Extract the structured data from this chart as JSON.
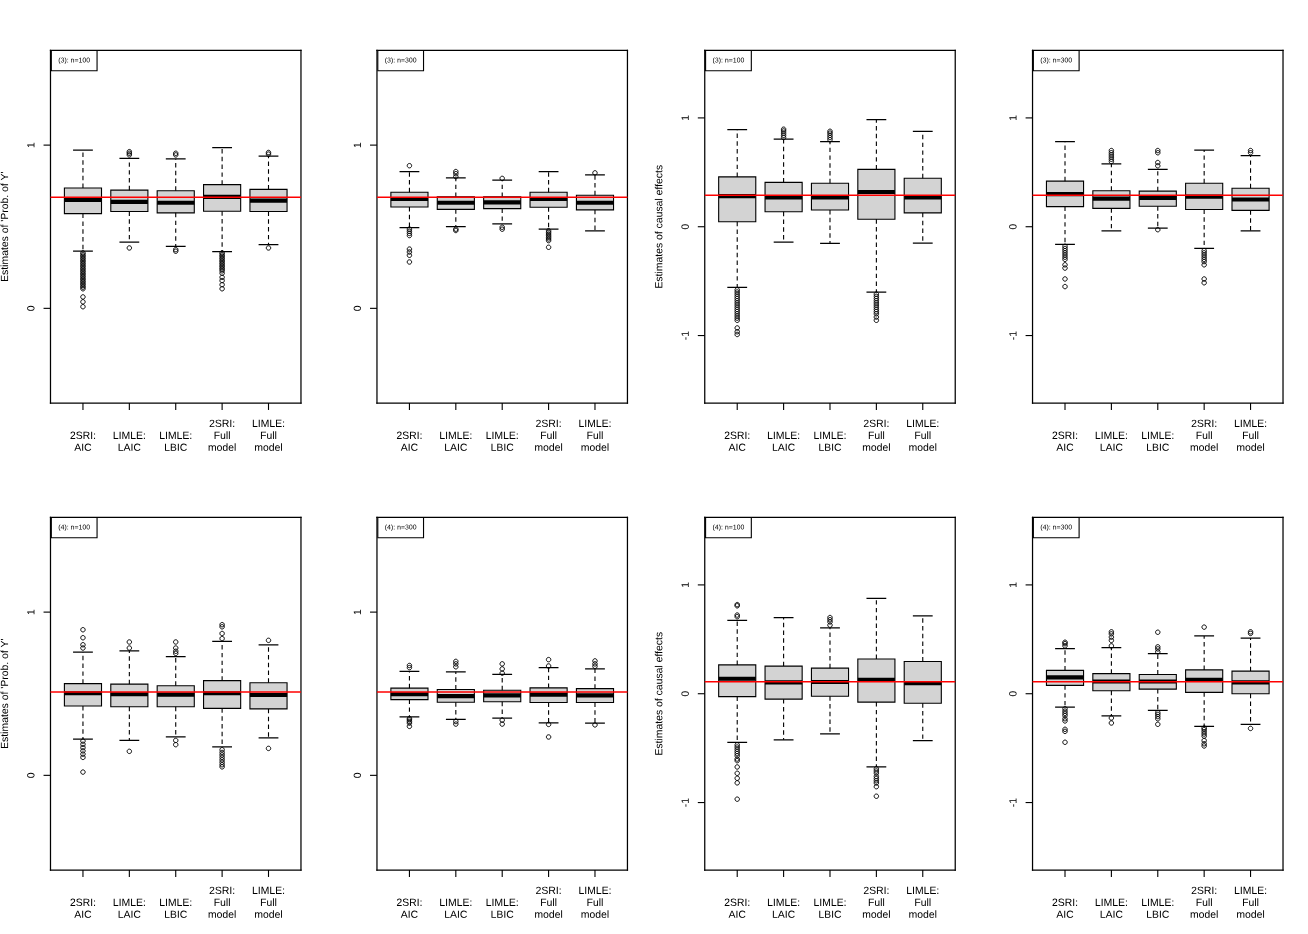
{
  "chart_data": [
    {
      "type": "box",
      "ylabel": "Estimates of 'Prob. of Y'",
      "annotations": [
        "(3): n=100"
      ],
      "categories": [
        "2SRI:\nAIC",
        "LIMLE:\nLAIC",
        "LIMLE:\nLBIC",
        "2SRI:\nFull\nmodel",
        "LIMLE:\nFull\nmodel"
      ],
      "ylim": [
        -0.58,
        1.58
      ],
      "yticks": [
        0,
        1
      ],
      "ref_lines": [
        {
          "axis": "y",
          "value": 0.68,
          "color": "#ff0000"
        }
      ],
      "series": [
        {
          "color": "#d3d3d3",
          "boxes": [
            {
              "low": 0.35,
              "q1": 0.58,
              "median": 0.665,
              "q3": 0.737,
              "high": 0.97,
              "outliers": [
                0.34,
                0.33,
                0.32,
                0.31,
                0.3,
                0.29,
                0.28,
                0.27,
                0.26,
                0.25,
                0.24,
                0.23,
                0.22,
                0.21,
                0.2,
                0.19,
                0.18,
                0.17,
                0.16,
                0.15,
                0.14,
                0.13,
                0.12,
                0.07,
                0.04,
                0.01
              ]
            },
            {
              "low": 0.405,
              "q1": 0.593,
              "median": 0.652,
              "q3": 0.724,
              "high": 0.918,
              "outliers": [
                0.94,
                0.95,
                0.96,
                0.37
              ]
            },
            {
              "low": 0.38,
              "q1": 0.585,
              "median": 0.647,
              "q3": 0.72,
              "high": 0.915,
              "outliers": [
                0.94,
                0.95,
                0.36,
                0.35
              ]
            },
            {
              "low": 0.348,
              "q1": 0.595,
              "median": 0.683,
              "q3": 0.758,
              "high": 0.985,
              "outliers": [
                0.34,
                0.33,
                0.32,
                0.31,
                0.3,
                0.29,
                0.28,
                0.27,
                0.26,
                0.25,
                0.24,
                0.23,
                0.215,
                0.19,
                0.17,
                0.145,
                0.12
              ]
            },
            {
              "low": 0.39,
              "q1": 0.593,
              "median": 0.66,
              "q3": 0.729,
              "high": 0.933,
              "outliers": [
                0.945,
                0.955,
                0.37
              ]
            }
          ]
        }
      ]
    },
    {
      "type": "box",
      "annotations": [
        "(3): n=300"
      ],
      "categories": [
        "2SRI:\nAIC",
        "LIMLE:\nLAIC",
        "LIMLE:\nLBIC",
        "2SRI:\nFull\nmodel",
        "LIMLE:\nFull\nmodel"
      ],
      "ylim": [
        -0.58,
        1.58
      ],
      "yticks": [
        0,
        1
      ],
      "ref_lines": [
        {
          "axis": "y",
          "value": 0.68,
          "color": "#ff0000"
        }
      ],
      "series": [
        {
          "color": "#d3d3d3",
          "boxes": [
            {
              "low": 0.495,
              "q1": 0.621,
              "median": 0.67,
              "q3": 0.711,
              "high": 0.838,
              "outliers": [
                0.874,
                0.485,
                0.472,
                0.459,
                0.446,
                0.363,
                0.345,
                0.325,
                0.284
              ]
            },
            {
              "low": 0.5,
              "q1": 0.606,
              "median": 0.647,
              "q3": 0.683,
              "high": 0.8,
              "outliers": [
                0.838,
                0.825,
                0.807,
                0.485,
                0.477
              ]
            },
            {
              "low": 0.518,
              "q1": 0.611,
              "median": 0.649,
              "q3": 0.683,
              "high": 0.786,
              "outliers": [
                0.796,
                0.497,
                0.485
              ]
            },
            {
              "low": 0.485,
              "q1": 0.619,
              "median": 0.67,
              "q3": 0.711,
              "high": 0.838,
              "outliers": [
                0.475,
                0.465,
                0.455,
                0.445,
                0.435,
                0.425,
                0.415,
                0.374
              ]
            },
            {
              "low": 0.474,
              "q1": 0.603,
              "median": 0.647,
              "q3": 0.693,
              "high": 0.817,
              "outliers": [
                0.83
              ]
            }
          ]
        }
      ]
    },
    {
      "type": "box",
      "ylabel": "Estimates of causal effects",
      "annotations": [
        "(3): n=100"
      ],
      "categories": [
        "2SRI:\nAIC",
        "LIMLE:\nLAIC",
        "LIMLE:\nLBIC",
        "2SRI:\nFull\nmodel",
        "LIMLE:\nFull\nmodel"
      ],
      "ylim": [
        -1.62,
        1.62
      ],
      "yticks": [
        -1,
        0,
        1
      ],
      "ref_lines": [
        {
          "axis": "y",
          "value": 0.29,
          "color": "#ff0000"
        }
      ],
      "series": [
        {
          "color": "#d3d3d3",
          "boxes": [
            {
              "low": -0.558,
              "q1": 0.046,
              "median": 0.281,
              "q3": 0.458,
              "high": 0.892,
              "outliers": [
                -0.58,
                -0.6,
                -0.62,
                -0.64,
                -0.66,
                -0.68,
                -0.7,
                -0.72,
                -0.74,
                -0.76,
                -0.78,
                -0.8,
                -0.82,
                -0.84,
                -0.86,
                -0.93,
                -0.965,
                -0.99
              ]
            },
            {
              "low": -0.142,
              "q1": 0.138,
              "median": 0.269,
              "q3": 0.408,
              "high": 0.804,
              "outliers": [
                0.82,
                0.84,
                0.86,
                0.88,
                0.896
              ]
            },
            {
              "low": -0.154,
              "q1": 0.154,
              "median": 0.269,
              "q3": 0.4,
              "high": 0.781,
              "outliers": [
                0.8,
                0.82,
                0.84,
                0.86,
                0.877
              ]
            },
            {
              "low": -0.6,
              "q1": 0.069,
              "median": 0.319,
              "q3": 0.527,
              "high": 0.985,
              "outliers": [
                -0.62,
                -0.64,
                -0.66,
                -0.68,
                -0.7,
                -0.72,
                -0.74,
                -0.76,
                -0.78,
                -0.8,
                -0.83,
                -0.86
              ]
            },
            {
              "low": -0.15,
              "q1": 0.127,
              "median": 0.269,
              "q3": 0.446,
              "high": 0.877
            }
          ]
        }
      ]
    },
    {
      "type": "box",
      "annotations": [
        "(3): n=300"
      ],
      "categories": [
        "2SRI:\nAIC",
        "LIMLE:\nLAIC",
        "LIMLE:\nLBIC",
        "2SRI:\nFull\nmodel",
        "LIMLE:\nFull\nmodel"
      ],
      "ylim": [
        -1.62,
        1.62
      ],
      "yticks": [
        -1,
        0,
        1
      ],
      "ref_lines": [
        {
          "axis": "y",
          "value": 0.29,
          "color": "#ff0000"
        }
      ],
      "series": [
        {
          "color": "#d3d3d3",
          "boxes": [
            {
              "low": -0.162,
              "q1": 0.185,
              "median": 0.3,
              "q3": 0.419,
              "high": 0.781,
              "outliers": [
                -0.18,
                -0.2,
                -0.22,
                -0.24,
                -0.26,
                -0.28,
                -0.3,
                -0.35,
                -0.38,
                -0.48,
                -0.55
              ]
            },
            {
              "low": -0.038,
              "q1": 0.169,
              "median": 0.258,
              "q3": 0.331,
              "high": 0.577,
              "outliers": [
                0.6,
                0.62,
                0.64,
                0.66,
                0.68,
                0.7
              ]
            },
            {
              "low": -0.012,
              "q1": 0.188,
              "median": 0.265,
              "q3": 0.327,
              "high": 0.527,
              "outliers": [
                0.56,
                0.59,
                0.68,
                0.7,
                -0.027
              ]
            },
            {
              "low": -0.2,
              "q1": 0.158,
              "median": 0.277,
              "q3": 0.4,
              "high": 0.704,
              "outliers": [
                -0.22,
                -0.24,
                -0.26,
                -0.28,
                -0.3,
                -0.32,
                -0.35,
                -0.48,
                -0.515
              ]
            },
            {
              "low": -0.038,
              "q1": 0.15,
              "median": 0.25,
              "q3": 0.354,
              "high": 0.654,
              "outliers": [
                0.68,
                0.7
              ]
            }
          ]
        }
      ]
    },
    {
      "type": "box",
      "ylabel": "Estimates of 'Prob. of Y'",
      "annotations": [
        "(4): n=100"
      ],
      "categories": [
        "2SRI:\nAIC",
        "LIMLE:\nLAIC",
        "LIMLE:\nLBIC",
        "2SRI:\nFull\nmodel",
        "LIMLE:\nFull\nmodel"
      ],
      "ylim": [
        -0.58,
        1.58
      ],
      "yticks": [
        0,
        1
      ],
      "ref_lines": [
        {
          "axis": "y",
          "value": 0.51,
          "color": "#ff0000"
        }
      ],
      "series": [
        {
          "color": "#d3d3d3",
          "boxes": [
            {
              "low": 0.222,
              "q1": 0.425,
              "median": 0.503,
              "q3": 0.562,
              "high": 0.755,
              "outliers": [
                0.78,
                0.8,
                0.843,
                0.892,
                0.21,
                0.19,
                0.17,
                0.15,
                0.13,
                0.11,
                0.02
              ]
            },
            {
              "low": 0.214,
              "q1": 0.42,
              "median": 0.497,
              "q3": 0.559,
              "high": 0.763,
              "outliers": [
                0.78,
                0.817,
                0.147
              ]
            },
            {
              "low": 0.235,
              "q1": 0.42,
              "median": 0.495,
              "q3": 0.549,
              "high": 0.727,
              "outliers": [
                0.747,
                0.76,
                0.78,
                0.817,
                0.214,
                0.188
              ]
            },
            {
              "low": 0.175,
              "q1": 0.41,
              "median": 0.503,
              "q3": 0.58,
              "high": 0.82,
              "outliers": [
                0.838,
                0.869,
                0.91,
                0.923,
                0.157,
                0.14,
                0.125,
                0.11,
                0.095,
                0.08,
                0.065,
                0.052
              ]
            },
            {
              "low": 0.229,
              "q1": 0.407,
              "median": 0.492,
              "q3": 0.567,
              "high": 0.799,
              "outliers": [
                0.827,
                0.165
              ]
            }
          ]
        }
      ]
    },
    {
      "type": "box",
      "annotations": [
        "(4): n=300"
      ],
      "categories": [
        "2SRI:\nAIC",
        "LIMLE:\nLAIC",
        "LIMLE:\nLBIC",
        "2SRI:\nFull\nmodel",
        "LIMLE:\nFull\nmodel"
      ],
      "ylim": [
        -0.58,
        1.58
      ],
      "yticks": [
        0,
        1
      ],
      "ref_lines": [
        {
          "axis": "y",
          "value": 0.51,
          "color": "#ff0000"
        }
      ],
      "series": [
        {
          "color": "#d3d3d3",
          "boxes": [
            {
              "low": 0.358,
              "q1": 0.464,
              "median": 0.497,
              "q3": 0.534,
              "high": 0.637,
              "outliers": [
                0.66,
                0.673,
                0.348,
                0.34,
                0.33,
                0.32,
                0.3
              ]
            },
            {
              "low": 0.343,
              "q1": 0.448,
              "median": 0.485,
              "q3": 0.526,
              "high": 0.634,
              "outliers": [
                0.665,
                0.683,
                0.698,
                0.33,
                0.314
              ]
            },
            {
              "low": 0.351,
              "q1": 0.451,
              "median": 0.49,
              "q3": 0.521,
              "high": 0.619,
              "outliers": [
                0.626,
                0.652,
                0.683,
                0.338,
                0.314
              ]
            },
            {
              "low": 0.322,
              "q1": 0.446,
              "median": 0.495,
              "q3": 0.536,
              "high": 0.66,
              "outliers": [
                0.67,
                0.709,
                0.312,
                0.235
              ]
            },
            {
              "low": 0.32,
              "q1": 0.446,
              "median": 0.49,
              "q3": 0.531,
              "high": 0.652,
              "outliers": [
                0.668,
                0.683,
                0.701,
                0.309
              ]
            }
          ]
        }
      ]
    },
    {
      "type": "box",
      "ylabel": "Estimates of causal effects",
      "annotations": [
        "(4): n=100"
      ],
      "categories": [
        "2SRI:\nAIC",
        "LIMLE:\nLAIC",
        "LIMLE:\nLBIC",
        "2SRI:\nFull\nmodel",
        "LIMLE:\nFull\nmodel"
      ],
      "ylim": [
        -1.62,
        1.62
      ],
      "yticks": [
        -1,
        0,
        1
      ],
      "ref_lines": [
        {
          "axis": "y",
          "value": 0.11,
          "color": "#ff0000"
        }
      ],
      "series": [
        {
          "color": "#d3d3d3",
          "boxes": [
            {
              "low": -0.446,
              "q1": -0.027,
              "median": 0.138,
              "q3": 0.265,
              "high": 0.673,
              "outliers": [
                0.708,
                0.723,
                0.808,
                0.819,
                -0.47,
                -0.49,
                -0.51,
                -0.53,
                -0.55,
                -0.57,
                -0.6,
                -0.615,
                -0.673,
                -0.731,
                -0.777,
                -0.819,
                -0.969
              ]
            },
            {
              "low": -0.423,
              "q1": -0.05,
              "median": 0.104,
              "q3": 0.254,
              "high": 0.7
            },
            {
              "low": -0.369,
              "q1": -0.023,
              "median": 0.108,
              "q3": 0.235,
              "high": 0.604,
              "outliers": [
                0.63,
                0.66,
                0.68,
                0.7
              ]
            },
            {
              "low": -0.673,
              "q1": -0.077,
              "median": 0.127,
              "q3": 0.319,
              "high": 0.877,
              "outliers": [
                -0.69,
                -0.71,
                -0.73,
                -0.76,
                -0.78,
                -0.8,
                -0.82,
                -0.854,
                -0.942
              ]
            },
            {
              "low": -0.431,
              "q1": -0.088,
              "median": 0.096,
              "q3": 0.296,
              "high": 0.715
            }
          ]
        }
      ]
    },
    {
      "type": "box",
      "annotations": [
        "(4): n=300"
      ],
      "categories": [
        "2SRI:\nAIC",
        "LIMLE:\nLAIC",
        "LIMLE:\nLBIC",
        "2SRI:\nFull\nmodel",
        "LIMLE:\nFull\nmodel"
      ],
      "ylim": [
        -1.62,
        1.62
      ],
      "yticks": [
        -1,
        0,
        1
      ],
      "ref_lines": [
        {
          "axis": "y",
          "value": 0.11,
          "color": "#ff0000"
        }
      ],
      "series": [
        {
          "color": "#d3d3d3",
          "boxes": [
            {
              "low": -0.123,
              "q1": 0.077,
              "median": 0.15,
              "q3": 0.215,
              "high": 0.415,
              "outliers": [
                0.44,
                0.46,
                0.473,
                -0.138,
                -0.16,
                -0.18,
                -0.2,
                -0.23,
                -0.25,
                -0.327,
                -0.346,
                -0.446
              ]
            },
            {
              "low": -0.204,
              "q1": 0.027,
              "median": 0.112,
              "q3": 0.185,
              "high": 0.423,
              "outliers": [
                0.44,
                0.49,
                0.52,
                0.55,
                0.569,
                -0.223,
                -0.269
              ]
            },
            {
              "low": -0.154,
              "q1": 0.042,
              "median": 0.112,
              "q3": 0.177,
              "high": 0.369,
              "outliers": [
                0.385,
                0.412,
                0.431,
                0.565,
                -0.173,
                -0.19,
                -0.21,
                -0.23,
                -0.281
              ]
            },
            {
              "low": -0.3,
              "q1": 0.012,
              "median": 0.127,
              "q3": 0.219,
              "high": 0.531,
              "outliers": [
                0.612,
                -0.315,
                -0.33,
                -0.35,
                -0.37,
                -0.39,
                -0.43,
                -0.46,
                -0.48
              ]
            },
            {
              "low": -0.281,
              "q1": 0.0,
              "median": 0.104,
              "q3": 0.208,
              "high": 0.512,
              "outliers": [
                0.554,
                0.569,
                -0.319
              ]
            }
          ]
        }
      ]
    }
  ]
}
